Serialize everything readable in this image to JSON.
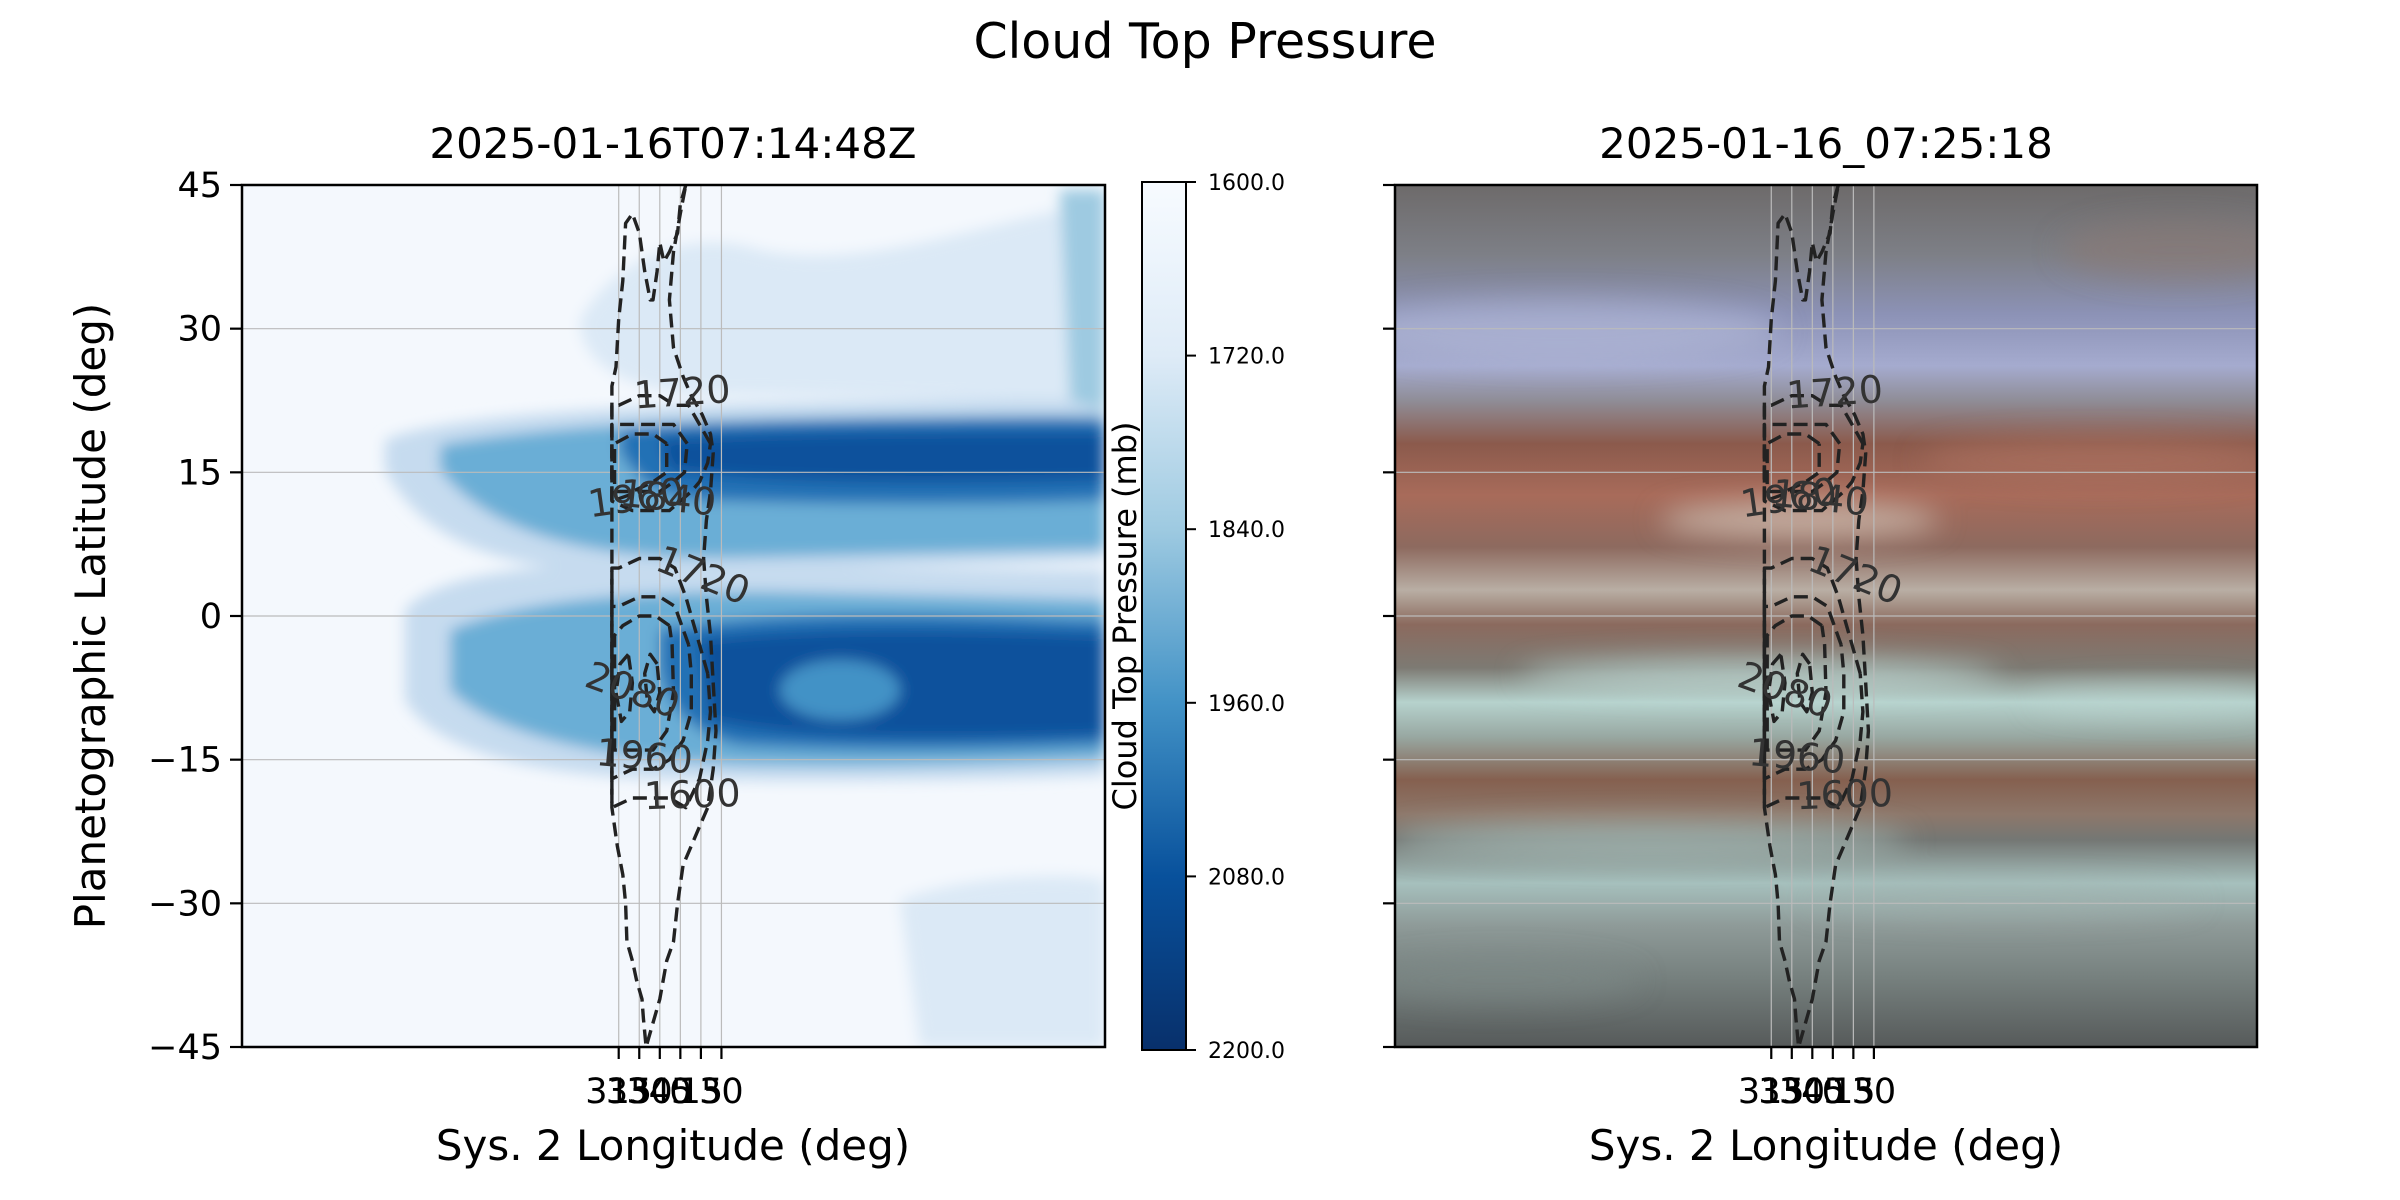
{
  "figure_title": "Cloud Top Pressure",
  "chart_data": [
    {
      "type": "heatmap",
      "title": "2025-01-16T07:14:48Z",
      "xlabel": "Sys. 2 Longitude (deg)",
      "ylabel": "Planetographic Latitude (deg)",
      "x_ticks": [
        30,
        15,
        0,
        345,
        330,
        315
      ],
      "x_tick_labels": [
        "30",
        "15",
        "0",
        "345",
        "330",
        "315"
      ],
      "y_ticks": [
        45,
        30,
        15,
        0,
        -15,
        -30,
        -45
      ],
      "y_tick_labels": [
        "45",
        "30",
        "15",
        "0",
        "−15",
        "−30",
        "−45"
      ],
      "xlim": [
        40,
        310
      ],
      "ylim": [
        -45,
        45
      ],
      "grid": true,
      "colorbar": {
        "label": "Cloud Top Pressure (mb)",
        "range": [
          1600,
          2200
        ],
        "ticks": [
          1600,
          1720,
          1840,
          1960,
          2080,
          2200
        ],
        "tick_labels": [
          "1600.0",
          "1720.0",
          "1840.0",
          "1960.0",
          "2080.0",
          "2200.0"
        ],
        "colormap": "Blues"
      },
      "contour_levels": [
        1600,
        1720,
        1840,
        1960,
        2080
      ],
      "contour_labels": [
        {
          "text": "1720",
          "lon": 2,
          "lat": 22
        },
        {
          "text": "1840",
          "lon": 350,
          "lat": 11
        },
        {
          "text": "1960",
          "lon": 329,
          "lat": 11
        },
        {
          "text": "1720",
          "lon": 13,
          "lat": 3
        },
        {
          "text": "2080",
          "lon": 322,
          "lat": -9
        },
        {
          "text": "1960",
          "lon": 333,
          "lat": -16
        },
        {
          "text": "1600",
          "lon": 9,
          "lat": -20
        }
      ]
    },
    {
      "type": "heatmap",
      "title": "2025-01-16_07:25:18",
      "xlabel": "Sys. 2 Longitude (deg)",
      "x_ticks": [
        30,
        15,
        0,
        345,
        330,
        315
      ],
      "x_tick_labels": [
        "30",
        "15",
        "0",
        "345",
        "330",
        "315"
      ],
      "xlim": [
        40,
        310
      ],
      "ylim": [
        -45,
        45
      ],
      "grid": true,
      "contour_levels": [
        1600,
        1720,
        1840,
        1960,
        2080
      ],
      "contour_labels": [
        {
          "text": "1720",
          "lon": 2,
          "lat": 22
        },
        {
          "text": "1840",
          "lon": 350,
          "lat": 11
        },
        {
          "text": "1960",
          "lon": 329,
          "lat": 11
        },
        {
          "text": "1720",
          "lon": 13,
          "lat": 3
        },
        {
          "text": "2080",
          "lon": 322,
          "lat": -9
        },
        {
          "text": "1960",
          "lon": 333,
          "lat": -16
        },
        {
          "text": "1600",
          "lon": 9,
          "lat": -20
        }
      ]
    }
  ]
}
